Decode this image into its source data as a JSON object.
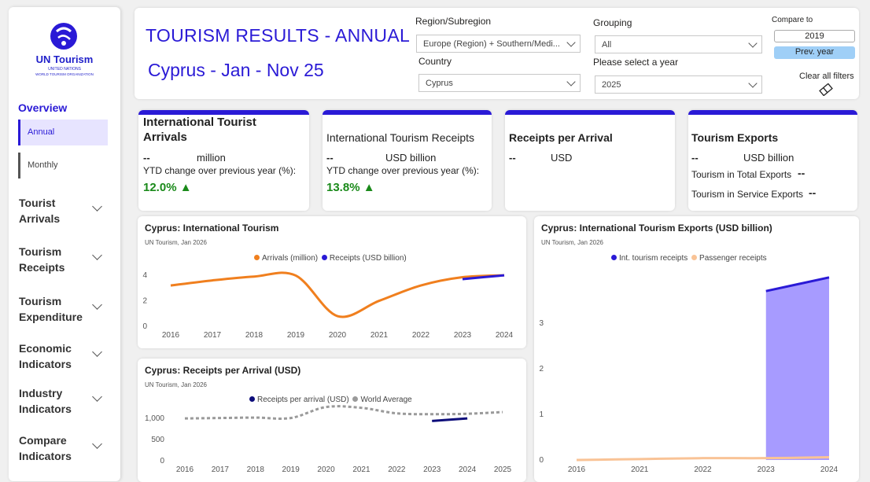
{
  "sidebar": {
    "logo_name": "UN Tourism",
    "logo_sub1": "UNITED NATIONS",
    "logo_sub2": "WORLD TOURISM ORGANIZATION",
    "overview": "Overview",
    "subnav": [
      "Annual",
      "Monthly"
    ],
    "groups": [
      "Tourist Arrivals",
      "Tourism Receipts",
      "Tourism Expenditure",
      "Economic Indicators",
      "Industry Indicators",
      "Compare Indicators"
    ]
  },
  "header": {
    "title": "TOURISM RESULTS - ANNUAL",
    "subtitle": "Cyprus - Jan - Nov 25",
    "region_label": "Region/Subregion",
    "region_value": "Europe (Region) + Southern/Medi...",
    "country_label": "Country",
    "country_value": "Cyprus",
    "grouping_label": "Grouping",
    "grouping_value": "All",
    "year_label": "Please select a year",
    "year_value": "2025",
    "compare_label": "Compare to",
    "compare_value": "2019",
    "prev_year": "Prev. year",
    "clear_filters": "Clear all filters"
  },
  "kpis": {
    "arrivals": {
      "title": "International Tourist Arrivals",
      "value": "--",
      "unit": "million",
      "ytd_label": "YTD change over previous year (%):",
      "ytd_value": "12.0% ▲"
    },
    "receipts": {
      "title": "International Tourism Receipts",
      "value": "--",
      "unit": "USD billion",
      "ytd_label": "YTD change over previous year (%):",
      "ytd_value": "13.8% ▲"
    },
    "per_arrival": {
      "title": "Receipts per Arrival",
      "value": "--",
      "unit": "USD"
    },
    "exports": {
      "title": "Tourism Exports",
      "value": "--",
      "unit": "USD billion",
      "total_label": "Tourism in Total Exports",
      "total_value": "--",
      "service_label": "Tourism in Service Exports",
      "service_value": "--"
    }
  },
  "colors": {
    "accent": "#2a1ad6",
    "orange": "#f07f1e",
    "blue": "#2a1ad6",
    "navy": "#0d0d7a",
    "grey": "#9a9a9a",
    "peach": "#f9c396",
    "fill": "#a79bff",
    "green": "#1a8a1a"
  },
  "chart_data": [
    {
      "type": "line",
      "title": "Cyprus: International Tourism",
      "subtitle": "UN Tourism, Jan 2026",
      "x": [
        2016,
        2017,
        2018,
        2019,
        2020,
        2021,
        2022,
        2023,
        2024
      ],
      "yticks": [
        0,
        2,
        4
      ],
      "ylim": [
        0,
        4.5
      ],
      "series": [
        {
          "name": "Arrivals (million)",
          "values": [
            3.2,
            3.6,
            3.9,
            3.98,
            0.8,
            2.0,
            3.2,
            3.85,
            4.0
          ]
        },
        {
          "name": "Receipts (USD billion)",
          "x": [
            2023,
            2024
          ],
          "values": [
            3.7,
            4.0
          ]
        }
      ],
      "legend": "top"
    },
    {
      "type": "line",
      "title": "Cyprus: Receipts per Arrival (USD)",
      "subtitle": "UN Tourism, Jan 2026",
      "x": [
        2016,
        2017,
        2018,
        2019,
        2020,
        2021,
        2022,
        2023,
        2024,
        2025
      ],
      "yticks": [
        0,
        500,
        1000
      ],
      "ytick_labels": [
        "0",
        "500",
        "1,000"
      ],
      "ylim": [
        0,
        1300
      ],
      "series": [
        {
          "name": "Receipts per arrival (USD)",
          "x": [
            2023,
            2024
          ],
          "values": [
            940,
            1000
          ]
        },
        {
          "name": "World Average",
          "values": [
            1000,
            1010,
            1020,
            1010,
            1270,
            1250,
            1120,
            1100,
            1110,
            1150
          ]
        }
      ],
      "legend": "top"
    },
    {
      "type": "area",
      "title": "Cyprus: International Tourism Exports (USD billion)",
      "subtitle": "UN Tourism, Jan 2026",
      "x": [
        2016,
        2021,
        2022,
        2023,
        2024
      ],
      "yticks": [
        0,
        1,
        2,
        3
      ],
      "ylim": [
        0,
        4.1
      ],
      "series": [
        {
          "name": "Int. tourism receipts",
          "x": [
            2023,
            2024
          ],
          "values": [
            3.7,
            4.0
          ]
        },
        {
          "name": "Passenger receipts",
          "x": [
            2016,
            2021,
            2022,
            2023,
            2024
          ],
          "values": [
            0.0,
            0.02,
            0.04,
            0.04,
            0.06
          ]
        }
      ],
      "legend": "top"
    }
  ]
}
